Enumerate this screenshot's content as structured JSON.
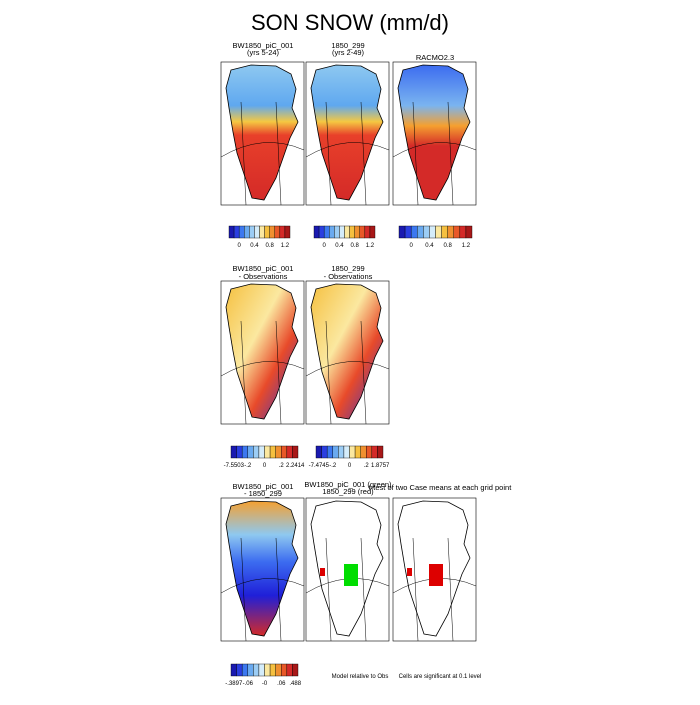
{
  "title": "SON SNOW (mm/d)",
  "panels": [
    {
      "title": [
        "BW1850_piC_001",
        "(yrs 5-24)"
      ]
    },
    {
      "title": [
        "1850_299",
        "(yrs 2-49)"
      ]
    },
    {
      "title": [
        "RACMO2.3"
      ]
    },
    {
      "title": [
        "BW1850_piC_001",
        "- Observations"
      ]
    },
    {
      "title": [
        "1850_299",
        "- Observations"
      ]
    },
    {
      "title": [
        "BW1850_piC_001",
        "- 1850_299"
      ]
    },
    {
      "title": [
        "BW1850_piC_001 (green)",
        "1850_299 (red)"
      ]
    },
    {
      "title": [
        "t-test of two Case means at each grid point"
      ]
    }
  ],
  "colorbars": [
    {
      "labels": [
        "0",
        "0.4",
        "0.8",
        "1.2"
      ]
    },
    {
      "labels": [
        "0",
        "0.4",
        "0.8",
        "1.2"
      ]
    },
    {
      "labels": [
        "0",
        "0.4",
        "0.8",
        "1.2"
      ]
    },
    {
      "labels": [
        "-7.5503",
        "-.2",
        "0",
        ".2",
        "2.2414"
      ]
    },
    {
      "labels": [
        "-7.4745",
        "-.2",
        "0",
        ".2",
        "1.8757"
      ]
    },
    {
      "labels": [
        "-.3897",
        "-.06",
        "-0",
        ".06",
        ".488"
      ]
    }
  ],
  "notes": [
    "Model relative to Obs",
    "Cells are significant at 0.1 level"
  ]
}
